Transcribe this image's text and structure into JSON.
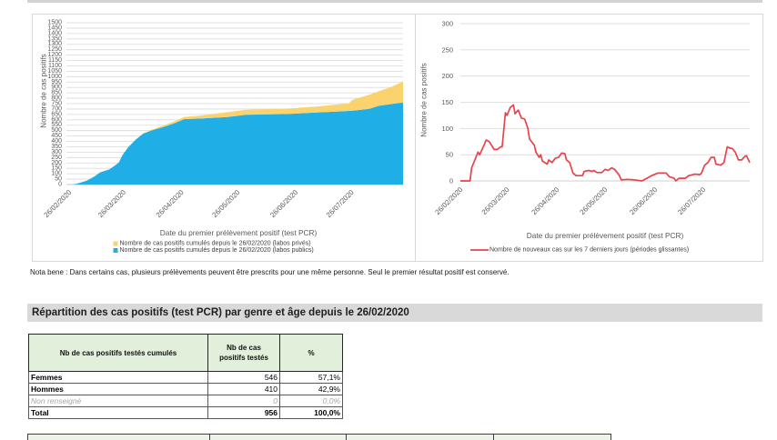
{
  "theme": {
    "table_header_bg": "#E2EFDA",
    "section_bar_bg": "#D9D9D9"
  },
  "chart_data": [
    {
      "type": "area",
      "stacked": true,
      "title": "",
      "xlabel": "Date du premier prélèvement positif (test PCR)",
      "ylabel": "Nombre de cas positifs",
      "ylim": [
        0,
        1500
      ],
      "xlim": [
        "26/02/2020",
        "24/08/2020"
      ],
      "grid": true,
      "legend_position": "bottom",
      "legend_order": [
        1,
        0
      ],
      "y_ticks": [
        0,
        50,
        100,
        150,
        200,
        250,
        300,
        350,
        400,
        450,
        500,
        550,
        600,
        650,
        700,
        750,
        800,
        850,
        900,
        950,
        1000,
        1050,
        1100,
        1150,
        1200,
        1250,
        1300,
        1350,
        1400,
        1450,
        1500
      ],
      "x_tick_labels": [
        "26/02/2020",
        "26/03/2020",
        "26/04/2020",
        "26/05/2020",
        "26/06/2020",
        "26/07/2020"
      ],
      "x": [
        "26/02/2020",
        "29/02/2020",
        "02/03/2020",
        "05/03/2020",
        "08/03/2020",
        "12/03/2020",
        "15/03/2020",
        "18/03/2020",
        "20/03/2020",
        "23/03/2020",
        "25/03/2020",
        "27/03/2020",
        "30/03/2020",
        "03/04/2020",
        "07/04/2020",
        "12/04/2020",
        "18/04/2020",
        "24/04/2020",
        "29/04/2020",
        "08/05/2020",
        "22/05/2020",
        "01/06/2020",
        "23/06/2020",
        "10/07/2020",
        "26/07/2020",
        "28/07/2020",
        "06/08/2020",
        "11/08/2020",
        "18/08/2020",
        "24/08/2020"
      ],
      "series": [
        {
          "name": "Nombre de cas positifs cumulés depuis le 26/02/2020 (labos publics)",
          "short_name": "labos publics",
          "color": "#1FAEE6",
          "values": [
            0,
            1,
            5,
            20,
            37,
            75,
            113,
            130,
            141,
            177,
            205,
            275,
            345,
            416,
            472,
            505,
            534,
            570,
            607,
            612,
            626,
            646,
            654,
            669,
            683,
            685,
            702,
            730,
            747,
            760
          ]
        },
        {
          "name": "Nombre de cas positifs cumulés depuis le 26/02/2020 (labos privés)",
          "short_name": "labos privés",
          "color": "#FAD26E",
          "values": [
            0,
            0,
            0,
            0,
            0,
            0,
            0,
            0,
            0,
            0,
            0,
            0,
            0,
            0,
            2,
            6,
            14,
            18,
            20,
            28,
            45,
            47,
            50,
            56,
            70,
            100,
            130,
            135,
            160,
            196
          ]
        }
      ]
    },
    {
      "type": "line",
      "title": "",
      "xlabel": "Date du premier prélèvement positif (test PCR)",
      "ylabel": "Nombre de cas positifs",
      "ylim": [
        0,
        300
      ],
      "xlim": [
        "26/02/2020",
        "24/08/2020"
      ],
      "grid": true,
      "legend_position": "bottom",
      "legend_order": [
        0
      ],
      "y_ticks": [
        0,
        50,
        100,
        150,
        200,
        250,
        300
      ],
      "x_tick_labels": [
        "26/02/2020",
        "26/03/2020",
        "26/04/2020",
        "26/05/2020",
        "26/06/2020",
        "26/07/2020"
      ],
      "x": [
        "26/02/2020",
        "03/03/2020",
        "04/03/2020",
        "08/03/2020",
        "09/03/2020",
        "12/03/2020",
        "13/03/2020",
        "15/03/2020",
        "18/03/2020",
        "20/03/2020",
        "22/03/2020",
        "23/03/2020",
        "25/03/2020",
        "26/03/2020",
        "28/03/2020",
        "30/03/2020",
        "31/03/2020",
        "02/04/2020",
        "04/04/2020",
        "06/04/2020",
        "08/04/2020",
        "09/04/2020",
        "12/04/2020",
        "13/04/2020",
        "14/04/2020",
        "15/04/2020",
        "16/04/2020",
        "17/04/2020",
        "20/04/2020",
        "21/04/2020",
        "23/04/2020",
        "25/04/2020",
        "27/04/2020",
        "29/04/2020",
        "01/05/2020",
        "02/05/2020",
        "04/05/2020",
        "06/05/2020",
        "08/05/2020",
        "12/05/2020",
        "13/05/2020",
        "16/05/2020",
        "18/05/2020",
        "19/05/2020",
        "21/05/2020",
        "24/05/2020",
        "26/05/2020",
        "28/05/2020",
        "30/05/2020",
        "01/06/2020",
        "04/06/2020",
        "05/06/2020",
        "09/06/2020",
        "13/06/2020",
        "18/06/2020",
        "21/06/2020",
        "24/06/2020",
        "28/06/2020",
        "03/07/2020",
        "05/07/2020",
        "08/07/2020",
        "09/07/2020",
        "11/07/2020",
        "15/07/2020",
        "17/07/2020",
        "21/07/2020",
        "24/07/2020",
        "25/07/2020",
        "27/07/2020",
        "29/07/2020",
        "31/07/2020",
        "02/08/2020",
        "03/08/2020",
        "06/08/2020",
        "08/08/2020",
        "10/08/2020",
        "12/08/2020",
        "13/08/2020",
        "15/08/2020",
        "17/08/2020",
        "19/08/2020",
        "21/08/2020",
        "22/08/2020",
        "24/08/2020"
      ],
      "series": [
        {
          "name": "Nombre de nouveaux cas sur les 7 derniers jours (périodes glissantes)",
          "short_name": "nouveaux cas 7 jours",
          "color": "#E8434B",
          "values": [
            0,
            0,
            25,
            55,
            50,
            70,
            78,
            75,
            60,
            60,
            65,
            65,
            130,
            125,
            140,
            145,
            128,
            135,
            120,
            118,
            100,
            80,
            68,
            55,
            50,
            45,
            50,
            38,
            32,
            40,
            35,
            43,
            45,
            53,
            52,
            40,
            35,
            15,
            10,
            10,
            18,
            20,
            18,
            20,
            16,
            16,
            22,
            20,
            25,
            22,
            10,
            2,
            3,
            2,
            0,
            5,
            10,
            15,
            15,
            8,
            5,
            0,
            5,
            5,
            10,
            13,
            12,
            15,
            30,
            35,
            45,
            45,
            32,
            30,
            35,
            65,
            62,
            62,
            55,
            40,
            40,
            47,
            48,
            35
          ]
        }
      ]
    }
  ],
  "note": "Nota bene : Dans certains cas, plusieurs prélèvements peuvent être prescrits pour une même personne. Seul le premier résultat positif est conservé.",
  "section": {
    "title": "Répartition des cas positifs (test PCR) par genre et âge depuis le 26/02/2020"
  },
  "gender_table": {
    "headers": [
      "Nb de cas positifs testés cumulés",
      "Nb de cas\npositifs testés",
      "%"
    ],
    "rows": [
      {
        "label": "Femmes",
        "count": "546",
        "percent": "57,1%"
      },
      {
        "label": "Hommes",
        "count": "410",
        "percent": "42,9%"
      },
      {
        "label": "Non renseigné",
        "count": "0",
        "percent": "0,0%"
      },
      {
        "label": "Total",
        "count": "956",
        "percent": "100,0%"
      }
    ]
  }
}
